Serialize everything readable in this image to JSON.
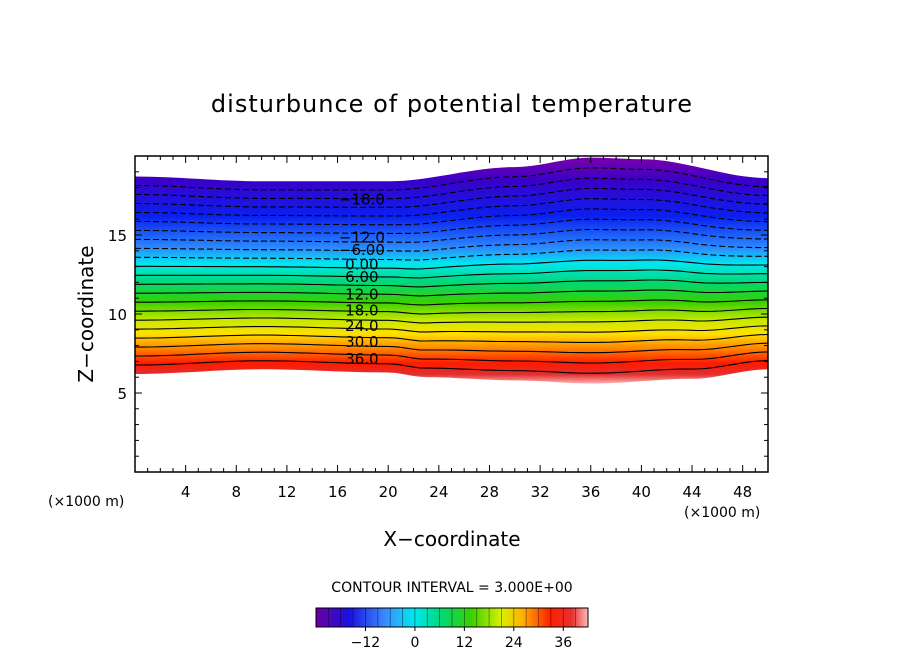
{
  "chart_data": {
    "type": "contour",
    "title": "disturbunce of potential temperature",
    "xlabel": "X−coordinate",
    "ylabel": "Z−coordinate",
    "x_unit_label_left": "(×1000 m)",
    "x_unit_label_right": "(×1000 m)",
    "xlim": [
      0,
      50
    ],
    "ylim": [
      0,
      20
    ],
    "x_ticks": [
      4,
      8,
      12,
      16,
      20,
      24,
      28,
      32,
      36,
      40,
      44,
      48
    ],
    "y_ticks": [
      5,
      10,
      15
    ],
    "contour_interval_text": "CONTOUR INTERVAL = 3.000E+00",
    "colorbar": {
      "range": [
        -24,
        42
      ],
      "ticks": [
        "−12",
        "0",
        "12",
        "24",
        "36"
      ],
      "tick_values": [
        -12,
        0,
        12,
        24,
        36
      ]
    },
    "domain_top_z": [
      [
        0,
        18.7
      ],
      [
        10,
        18.4
      ],
      [
        20,
        18.4
      ],
      [
        30,
        19.3
      ],
      [
        36,
        19.9
      ],
      [
        40,
        19.8
      ],
      [
        50,
        18.6
      ]
    ],
    "domain_bottom_z": [
      [
        0,
        6.2
      ],
      [
        10,
        6.5
      ],
      [
        20,
        6.3
      ],
      [
        23,
        6.0
      ],
      [
        30,
        5.8
      ],
      [
        36,
        5.6
      ],
      [
        44,
        5.9
      ],
      [
        50,
        6.5
      ]
    ],
    "contour_labels": [
      {
        "text": "−18.0",
        "x": 16.5,
        "z": 17.3
      },
      {
        "text": "−12.0",
        "x": 16.5,
        "z": 14.9
      },
      {
        "text": "−6.00",
        "x": 16.5,
        "z": 14.1
      },
      {
        "text": "0.00",
        "x": 16.5,
        "z": 13.2
      },
      {
        "text": "6.00",
        "x": 16.5,
        "z": 12.4
      },
      {
        "text": "12.0",
        "x": 16.5,
        "z": 11.3
      },
      {
        "text": "18.0",
        "x": 16.5,
        "z": 10.3
      },
      {
        "text": "24.0",
        "x": 16.5,
        "z": 9.3
      },
      {
        "text": "30.0",
        "x": 16.5,
        "z": 8.3
      },
      {
        "text": "36.0",
        "x": 16.5,
        "z": 7.2
      }
    ]
  }
}
